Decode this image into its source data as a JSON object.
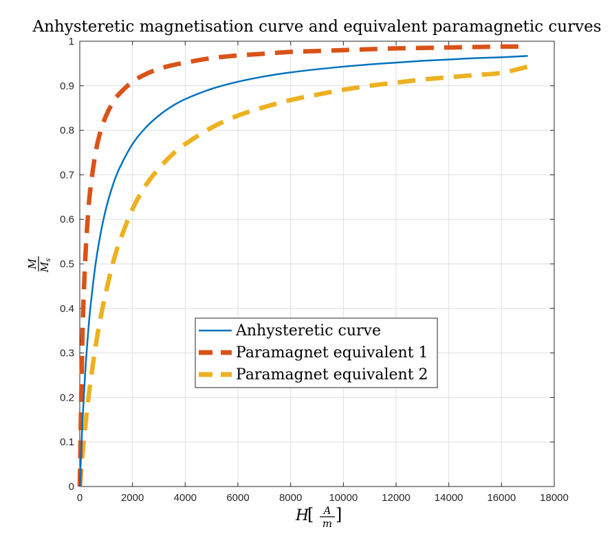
{
  "chart_data": {
    "type": "line",
    "title": "Anhysteretic magnetisation curve and equivalent paramagnetic curves",
    "xlabel": "H[A/m]",
    "xlabel_parts": {
      "main": "H",
      "num": "A",
      "den": "m"
    },
    "ylabel": "M/Ms",
    "ylabel_parts": {
      "num": "M",
      "den": "M",
      "den_sub": "s"
    },
    "xlim": [
      0,
      18000
    ],
    "ylim": [
      0,
      1
    ],
    "xticks": [
      0,
      2000,
      4000,
      6000,
      8000,
      10000,
      12000,
      14000,
      16000,
      18000
    ],
    "xtick_labels": [
      "0",
      "2000",
      "4000",
      "6000",
      "8000",
      "10000",
      "12000",
      "14000",
      "16000",
      "18000"
    ],
    "yticks": [
      0,
      0.1,
      0.2,
      0.3,
      0.4,
      0.5,
      0.6,
      0.7,
      0.8,
      0.9,
      1
    ],
    "ytick_labels": [
      "0",
      "0.1",
      "0.2",
      "0.3",
      "0.4",
      "0.5",
      "0.6",
      "0.7",
      "0.8",
      "0.9",
      "1"
    ],
    "grid": true,
    "legend_position": "center",
    "x": [
      0,
      100,
      200,
      300,
      400,
      600,
      800,
      1000,
      1250,
      1500,
      2000,
      2500,
      3000,
      3500,
      4000,
      5000,
      6000,
      7000,
      8000,
      9000,
      10000,
      11000,
      12000,
      13000,
      14000,
      15000,
      16000,
      17000
    ],
    "series": [
      {
        "name": "Anhysteretic curve",
        "color": "#0072BD",
        "style": "solid",
        "values": [
          0,
          0.143,
          0.25,
          0.333,
          0.4,
          0.5,
          0.571,
          0.625,
          0.676,
          0.714,
          0.769,
          0.806,
          0.833,
          0.854,
          0.87,
          0.893,
          0.909,
          0.921,
          0.93,
          0.937,
          0.943,
          0.948,
          0.952,
          0.956,
          0.959,
          0.962,
          0.964,
          0.967
        ]
      },
      {
        "name": "Paramagnet equivalent 1",
        "color": "#D95319",
        "style": "dashed",
        "values": [
          0,
          0.333,
          0.5,
          0.6,
          0.667,
          0.75,
          0.8,
          0.833,
          0.862,
          0.882,
          0.909,
          0.926,
          0.938,
          0.946,
          0.952,
          0.962,
          0.968,
          0.972,
          0.976,
          0.978,
          0.98,
          0.982,
          0.984,
          0.985,
          0.986,
          0.987,
          0.988,
          0.988
        ]
      },
      {
        "name": "Paramagnet equivalent 2",
        "color": "#EDB120",
        "style": "dashed",
        "values": [
          0,
          0.07,
          0.13,
          0.184,
          0.232,
          0.315,
          0.382,
          0.438,
          0.5,
          0.548,
          0.623,
          0.676,
          0.714,
          0.745,
          0.769,
          0.806,
          0.833,
          0.852,
          0.868,
          0.88,
          0.891,
          0.9,
          0.907,
          0.914,
          0.919,
          0.924,
          0.929,
          0.943
        ]
      }
    ]
  }
}
